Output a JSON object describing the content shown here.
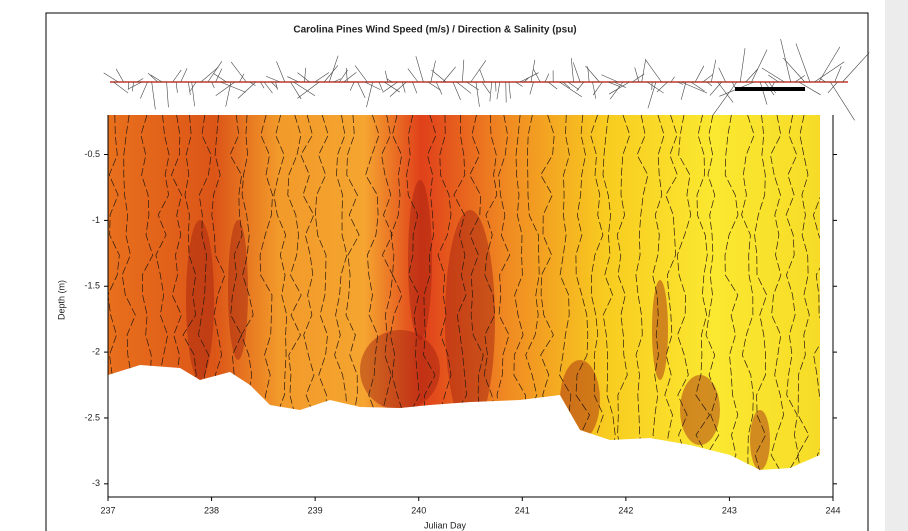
{
  "chart_data": {
    "type": "contour",
    "title": "Carolina Pines Wind Speed (m/s) / Direction & Salinity (psu)",
    "xlabel": "Julian Day",
    "ylabel": "Depth (m)",
    "xlim": [
      237,
      244
    ],
    "xticks": [
      237,
      238,
      239,
      240,
      241,
      242,
      243,
      244
    ],
    "ylim": [
      -3.1,
      -0.2
    ],
    "yticks": [
      -0.5,
      -1,
      -1.5,
      -2,
      -2.5,
      -3
    ]
  }
}
